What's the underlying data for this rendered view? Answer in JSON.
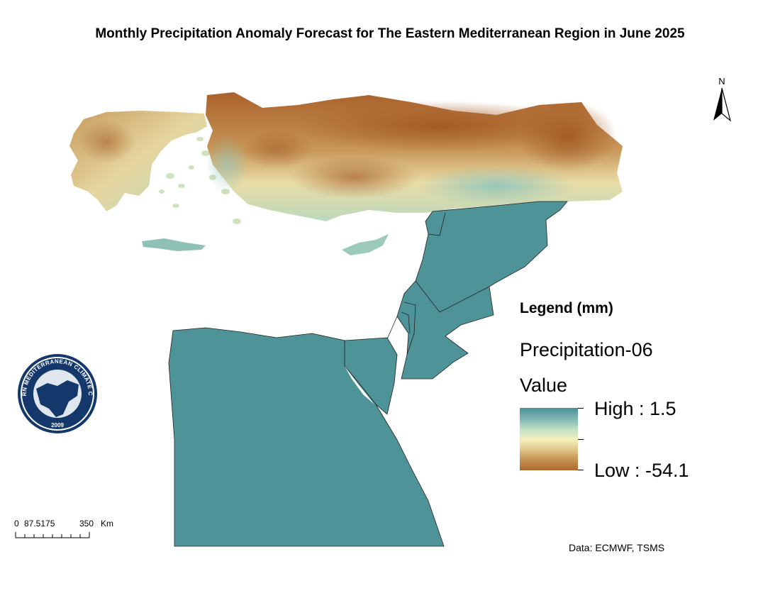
{
  "title": "Monthly Precipitation Anomaly Forecast for The Eastern Mediterranean Region in June 2025",
  "north_arrow": {
    "label": "N"
  },
  "legend": {
    "heading": "Legend (mm)",
    "layer_name": "Precipitation-06",
    "field_name": "Value",
    "high_label": "High : 1.5",
    "low_label": "Low : -54.1",
    "high_value": 1.5,
    "low_value": -54.1,
    "ramp_colors": [
      "#4a8f98",
      "#c8e2c4",
      "#f4efbe",
      "#ae6a2c"
    ]
  },
  "scale_bar": {
    "labels": [
      "0",
      "87.5175",
      "350",
      "Km"
    ]
  },
  "credit": "Data: ECMWF, TSMS",
  "logo": {
    "ring_text": "EASTERN MEDITERRANEAN CLIMATE CENTRE",
    "year": "2009"
  },
  "map": {
    "regions": [
      {
        "name": "turkey",
        "fill": "dry-anomaly"
      },
      {
        "name": "greece",
        "fill": "dry-anomaly"
      },
      {
        "name": "syria",
        "fill": "#4e9398"
      },
      {
        "name": "egypt",
        "fill": "#4e9398"
      }
    ]
  }
}
